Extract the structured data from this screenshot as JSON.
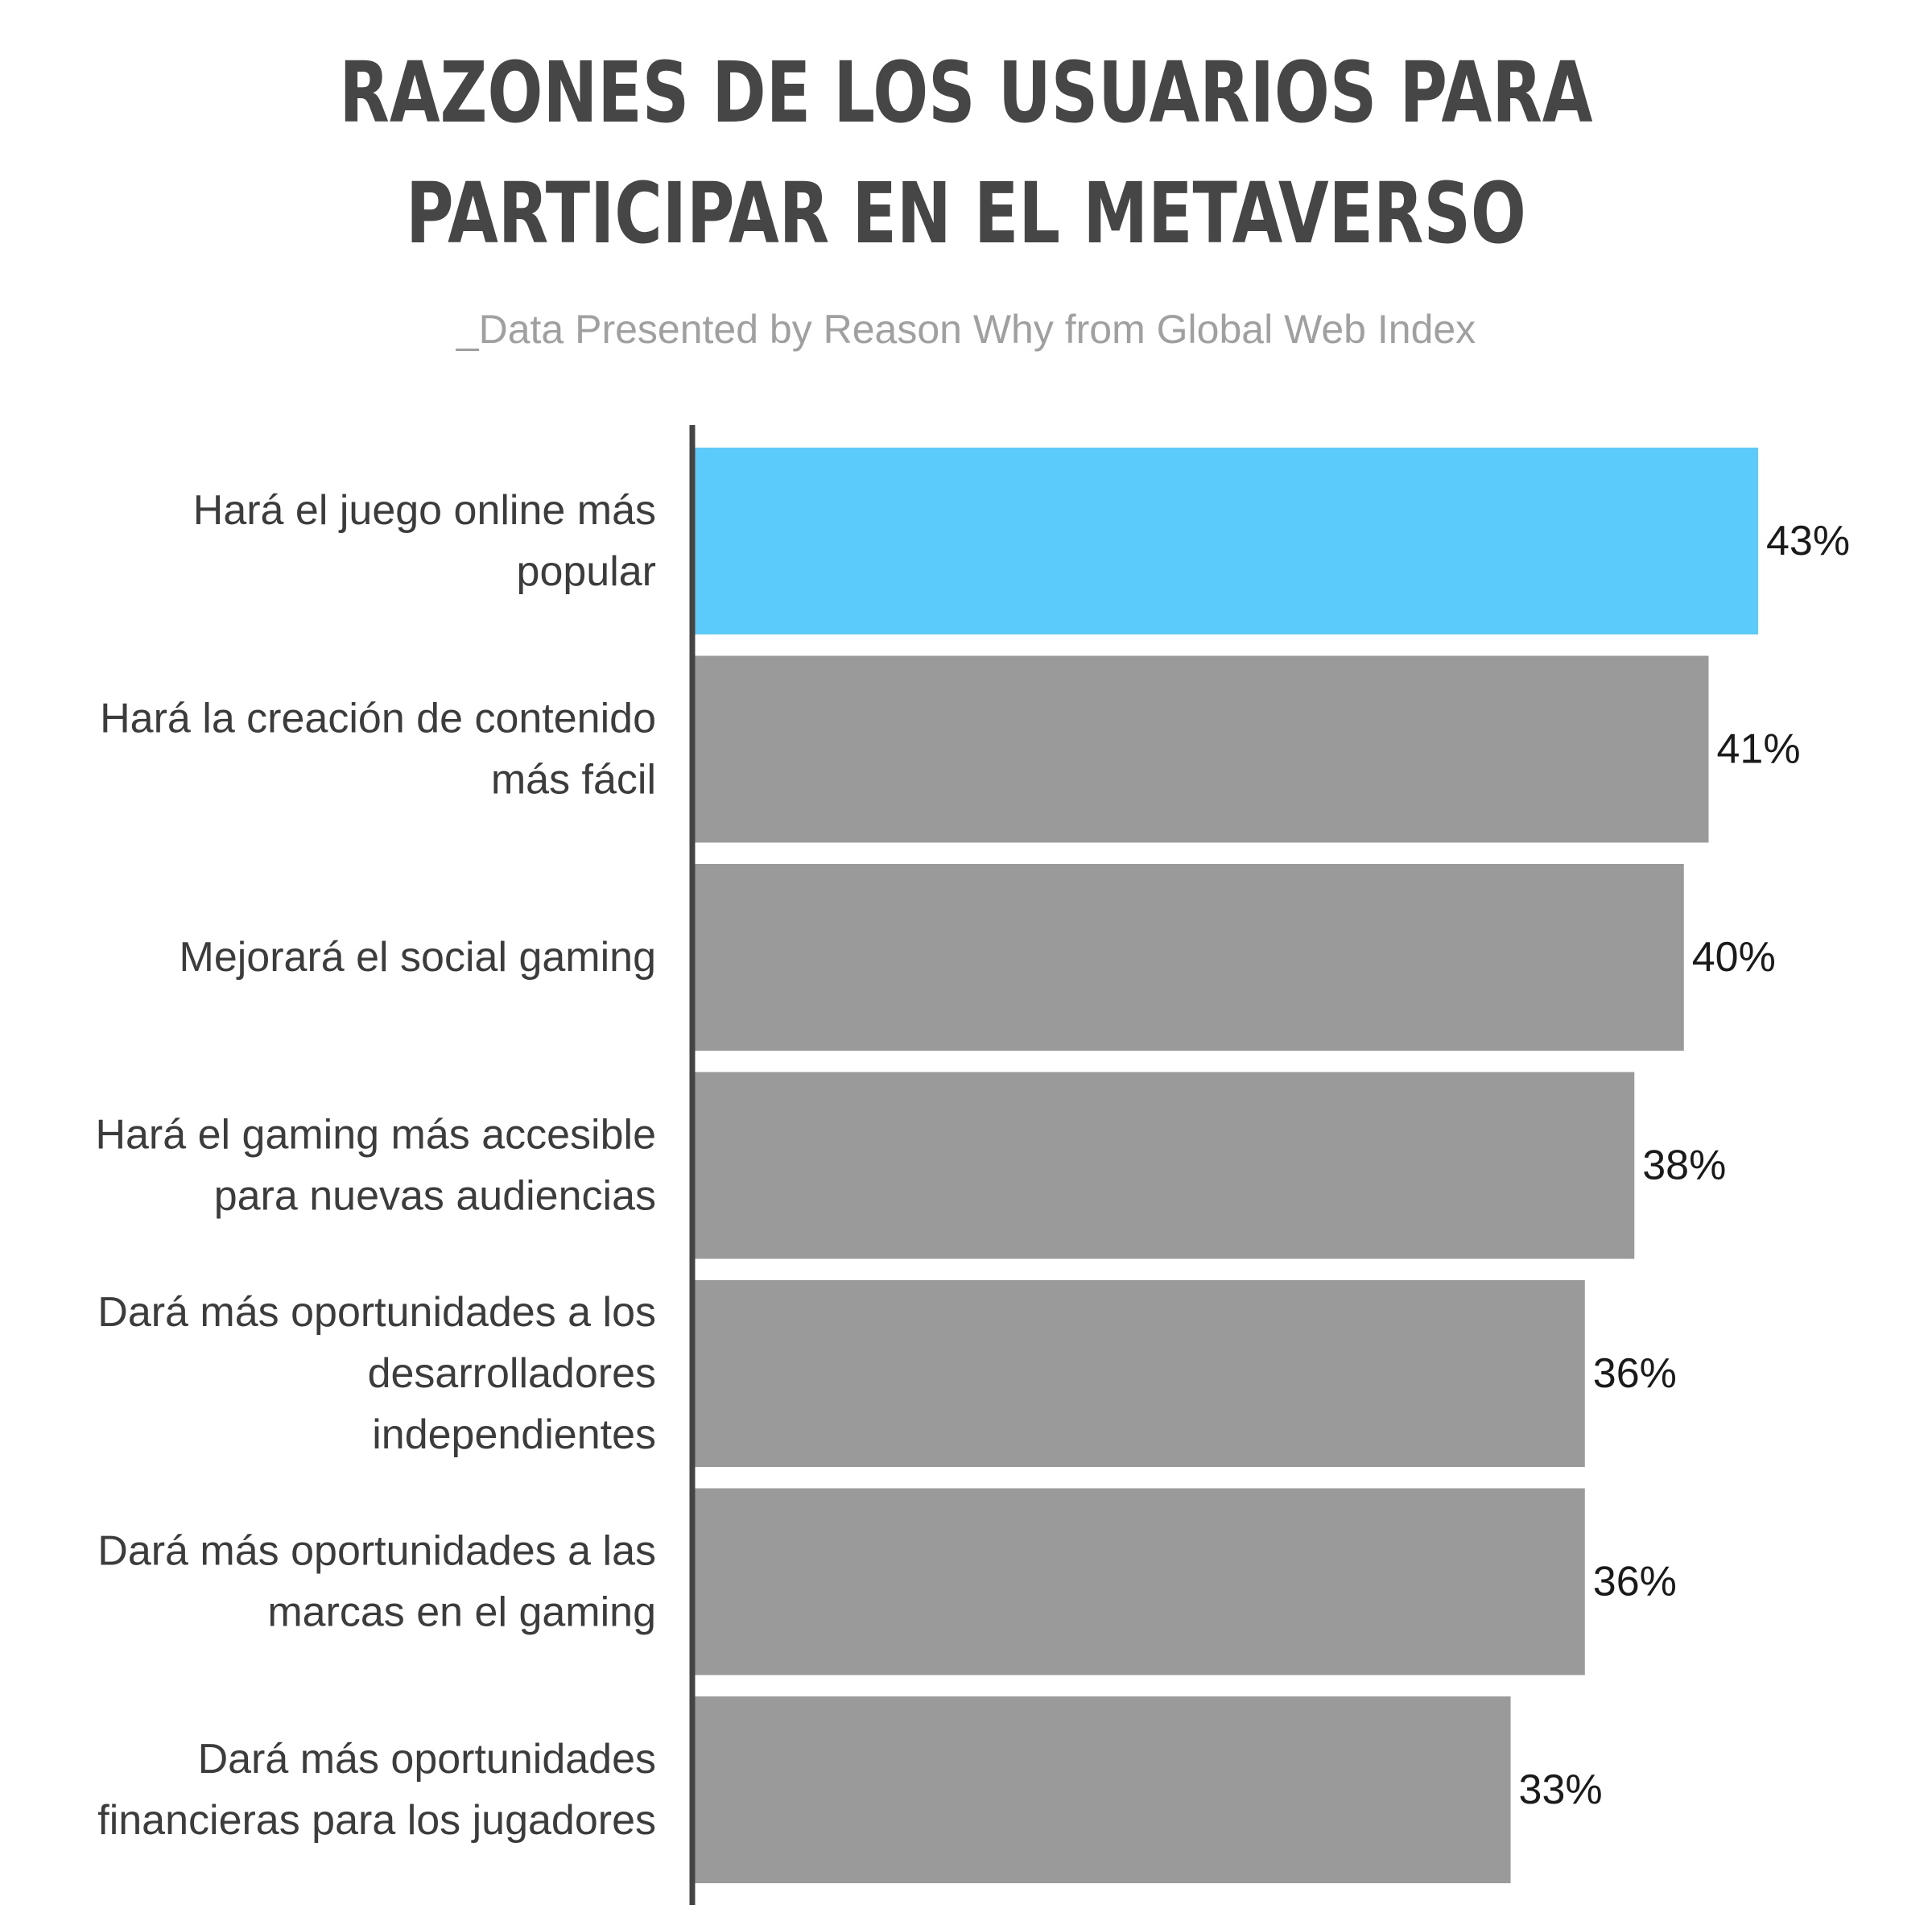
{
  "title_lines": [
    "RAZONES DE LOS USUARIOS PARA",
    "PARTICIPAR EN EL METAVERSO"
  ],
  "subtitle": "_Data Presented by Reason Why from Global Web Index",
  "colors": {
    "highlight": "#5bcbfc",
    "bar": "#9a9a9a",
    "axis": "#444444",
    "title": "#464646",
    "subtitle": "#a0a0a0"
  },
  "chart_data": {
    "type": "bar",
    "orientation": "horizontal",
    "categories": [
      [
        "Hará el juego online más",
        "popular"
      ],
      [
        "Hará la creación de contenido",
        "más fácil"
      ],
      [
        "Mejorará el social gaming"
      ],
      [
        "Hará el gaming más accesible",
        "para nuevas audiencias"
      ],
      [
        "Dará más oportunidades a los",
        "desarrolladores",
        "independientes"
      ],
      [
        "Dará más oportunidades a las",
        "marcas en el gaming"
      ],
      [
        "Dará más oportunidades",
        "financieras para los jugadores"
      ]
    ],
    "values": [
      43,
      41,
      40,
      38,
      36,
      36,
      33
    ],
    "value_labels": [
      "43%",
      "41%",
      "40%",
      "38%",
      "36%",
      "36%",
      "33%"
    ],
    "highlight_index": 0,
    "xlim": [
      0,
      43
    ],
    "grid": false,
    "legend": "none",
    "unit": "%"
  }
}
